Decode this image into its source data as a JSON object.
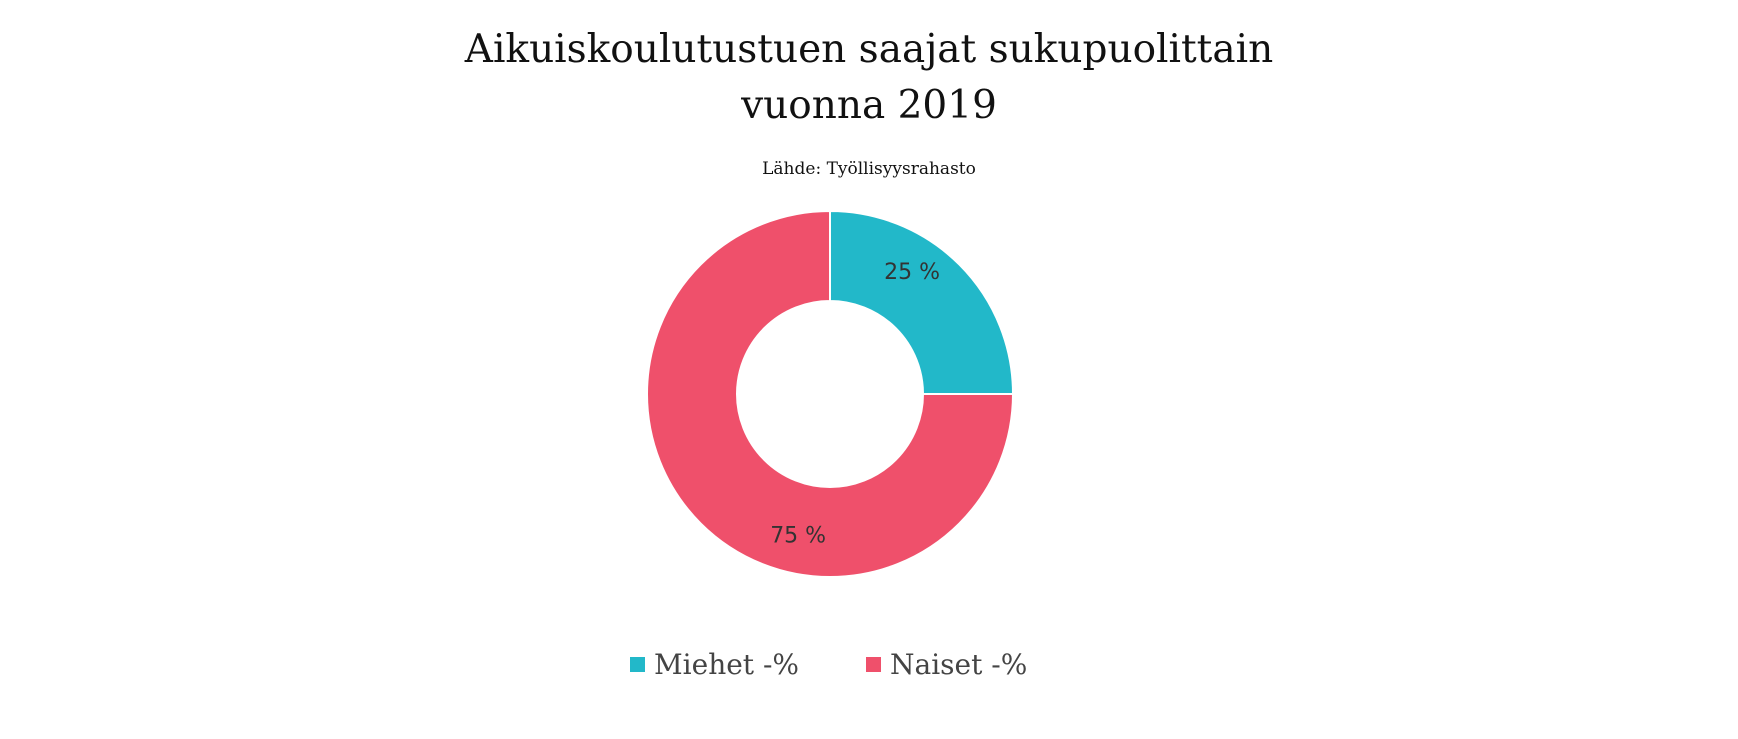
{
  "title_lines": [
    "Aikuiskoulutustuen saajat sukupuolittain",
    "vuonna 2019"
  ],
  "subtitle": "Lähde: Työllisyysrahasto",
  "chart_data": {
    "type": "pie",
    "variant": "donut",
    "title": "Aikuiskoulutustuen saajat sukupuolittain vuonna 2019",
    "subtitle": "Lähde: Työllisyysrahasto",
    "categories": [
      "Miehet -%",
      "Naiset -%"
    ],
    "values": [
      25,
      75
    ],
    "labels": [
      "25 %",
      "75 %"
    ],
    "colors": [
      "#22b8c9",
      "#ef506b"
    ],
    "legend_position": "bottom"
  }
}
